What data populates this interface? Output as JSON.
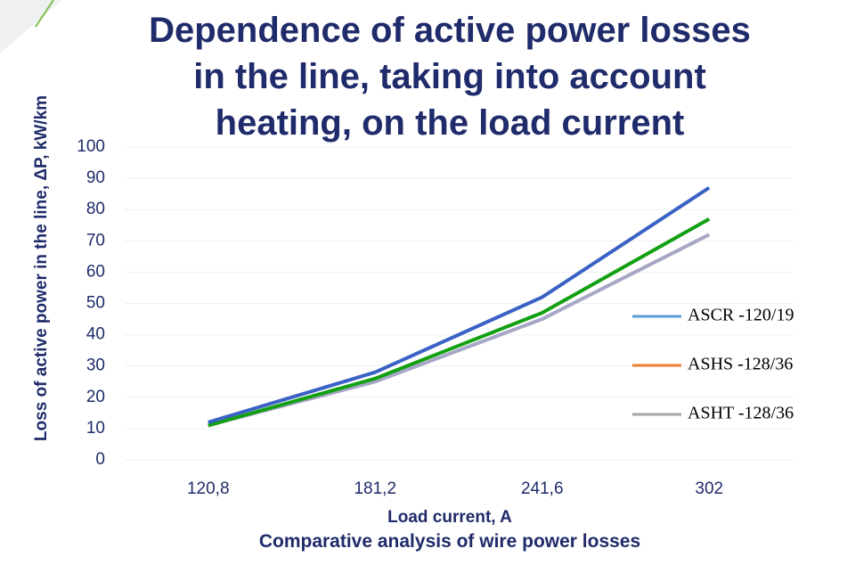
{
  "chart_data": {
    "type": "line",
    "title": "Dependence of active power losses in the line, taking into account heating, on the load current",
    "y_label": "Loss of active power in the line, ΔP, kW/km",
    "x_label": "Load current, A",
    "caption": "Comparative analysis of wire power losses",
    "categories": [
      "120,8",
      "181,2",
      "241,6",
      "302"
    ],
    "series": [
      {
        "name": "ASCR -120/19",
        "color": "#3a62c4",
        "legend_color": "#5b9bd5",
        "values": [
          12,
          28,
          52,
          87
        ]
      },
      {
        "name": "ASHS -128/36",
        "color": "#12a012",
        "legend_color": "#ed7d31",
        "values": [
          11,
          26,
          47,
          77
        ]
      },
      {
        "name": "ASHT -128/36",
        "color": "#a6a6c6",
        "legend_color": "#a5a5a5",
        "values": [
          11,
          25,
          45,
          72
        ]
      }
    ],
    "ylim": [
      0,
      100
    ],
    "yticks": [
      0,
      10,
      20,
      30,
      40,
      50,
      60,
      70,
      80,
      90,
      100
    ],
    "grid": true,
    "legend": "right"
  }
}
